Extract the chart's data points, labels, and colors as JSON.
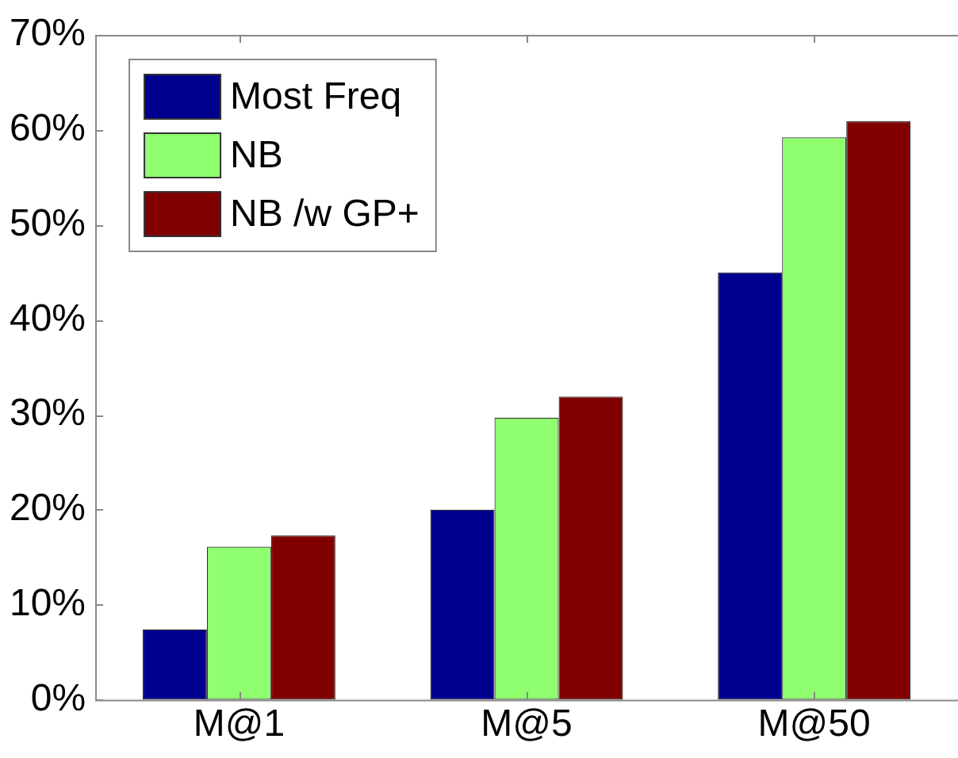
{
  "chart_data": {
    "type": "bar",
    "categories": [
      "M@1",
      "M@5",
      "M@50"
    ],
    "series": [
      {
        "name": "Most Freq",
        "color": "#00008f",
        "values": [
          7.4,
          20.0,
          45.0
        ]
      },
      {
        "name": "NB",
        "color": "#8fff70",
        "values": [
          16.1,
          29.7,
          59.2
        ]
      },
      {
        "name": "NB /w GP+",
        "color": "#800000",
        "values": [
          17.3,
          31.9,
          60.9
        ]
      }
    ],
    "ylim": [
      0,
      70
    ],
    "yticks": [
      {
        "value": 0,
        "label": "0%"
      },
      {
        "value": 10,
        "label": "10%"
      },
      {
        "value": 20,
        "label": "20%"
      },
      {
        "value": 30,
        "label": "30%"
      },
      {
        "value": 40,
        "label": "40%"
      },
      {
        "value": 50,
        "label": "50%"
      },
      {
        "value": 60,
        "label": "60%"
      },
      {
        "value": 70,
        "label": "70%"
      }
    ],
    "grid": false,
    "legend": "top left"
  }
}
